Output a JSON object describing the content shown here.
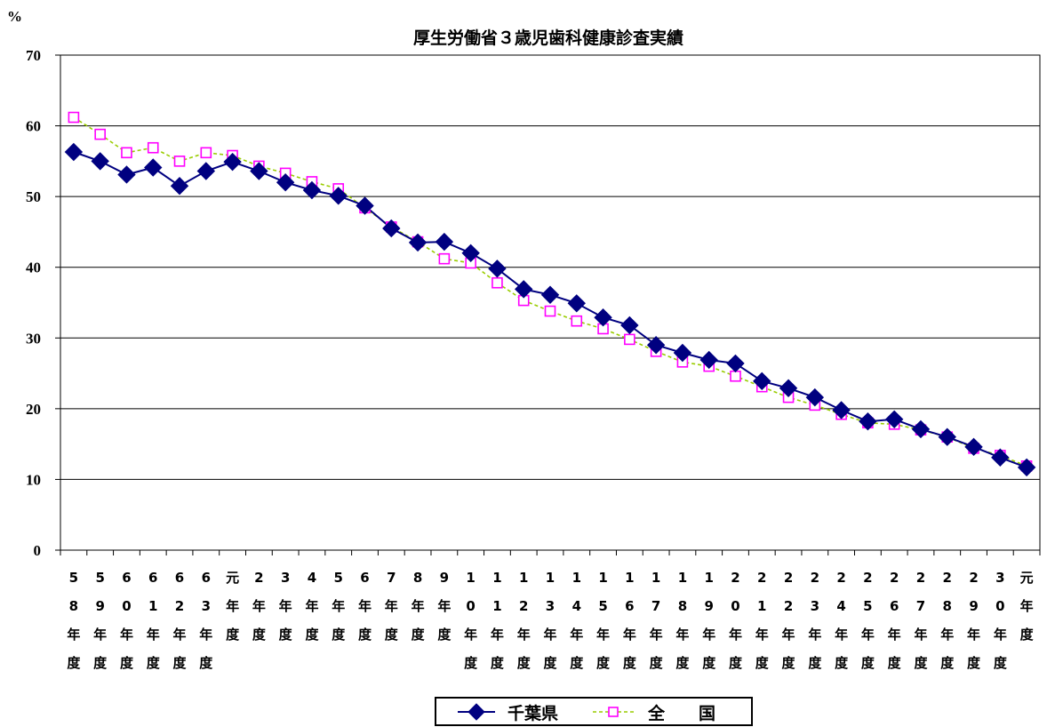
{
  "chart_data": {
    "type": "line",
    "title": "厚生労働省３歳児歯科健康診査実績",
    "ylabel": "%",
    "xlabel": "",
    "ylim": [
      0,
      70
    ],
    "yticks": [
      0,
      10,
      20,
      30,
      40,
      50,
      60,
      70
    ],
    "grid": true,
    "legend": "bottom",
    "categories": [
      "58年度",
      "59年度",
      "60年度",
      "61年度",
      "62年度",
      "63年度",
      "元年度",
      "2年度",
      "3年度",
      "4年度",
      "5年度",
      "6年度",
      "7年度",
      "8年度",
      "9年度",
      "10年度",
      "11年度",
      "12年度",
      "13年度",
      "14年度",
      "15年度",
      "16年度",
      "17年度",
      "18年度",
      "19年度",
      "20年度",
      "21年度",
      "22年度",
      "23年度",
      "24年度",
      "25年度",
      "26年度",
      "27年度",
      "28年度",
      "29年度",
      "30年度",
      "元年度"
    ],
    "series": [
      {
        "name": "千葉県",
        "values": [
          56.3,
          55.0,
          53.1,
          54.1,
          51.5,
          53.6,
          54.9,
          53.6,
          52.0,
          50.9,
          50.1,
          48.7,
          45.5,
          43.5,
          43.6,
          42.0,
          39.8,
          36.9,
          36.1,
          34.9,
          32.9,
          31.8,
          29.0,
          27.9,
          26.9,
          26.4,
          23.9,
          22.9,
          21.6,
          19.8,
          18.2,
          18.5,
          17.1,
          16.0,
          14.6,
          13.1,
          11.7
        ],
        "line_color": "#000080",
        "marker_color": "#000080",
        "marker": "diamond",
        "line_style": "solid"
      },
      {
        "name": "全　　国",
        "values": [
          61.2,
          58.8,
          56.2,
          56.9,
          55.0,
          56.2,
          55.8,
          54.3,
          53.3,
          52.1,
          51.1,
          48.4,
          45.7,
          43.6,
          41.2,
          40.6,
          37.8,
          35.3,
          33.8,
          32.4,
          31.3,
          29.8,
          28.1,
          26.6,
          26.0,
          24.6,
          23.1,
          21.6,
          20.5,
          19.2,
          18.0,
          17.8,
          17.0,
          16.0,
          14.4,
          13.4,
          11.9
        ],
        "line_color": "#99CC00",
        "marker_color": "#FF00FF",
        "marker": "hollow-square",
        "line_style": "dashed"
      }
    ]
  }
}
